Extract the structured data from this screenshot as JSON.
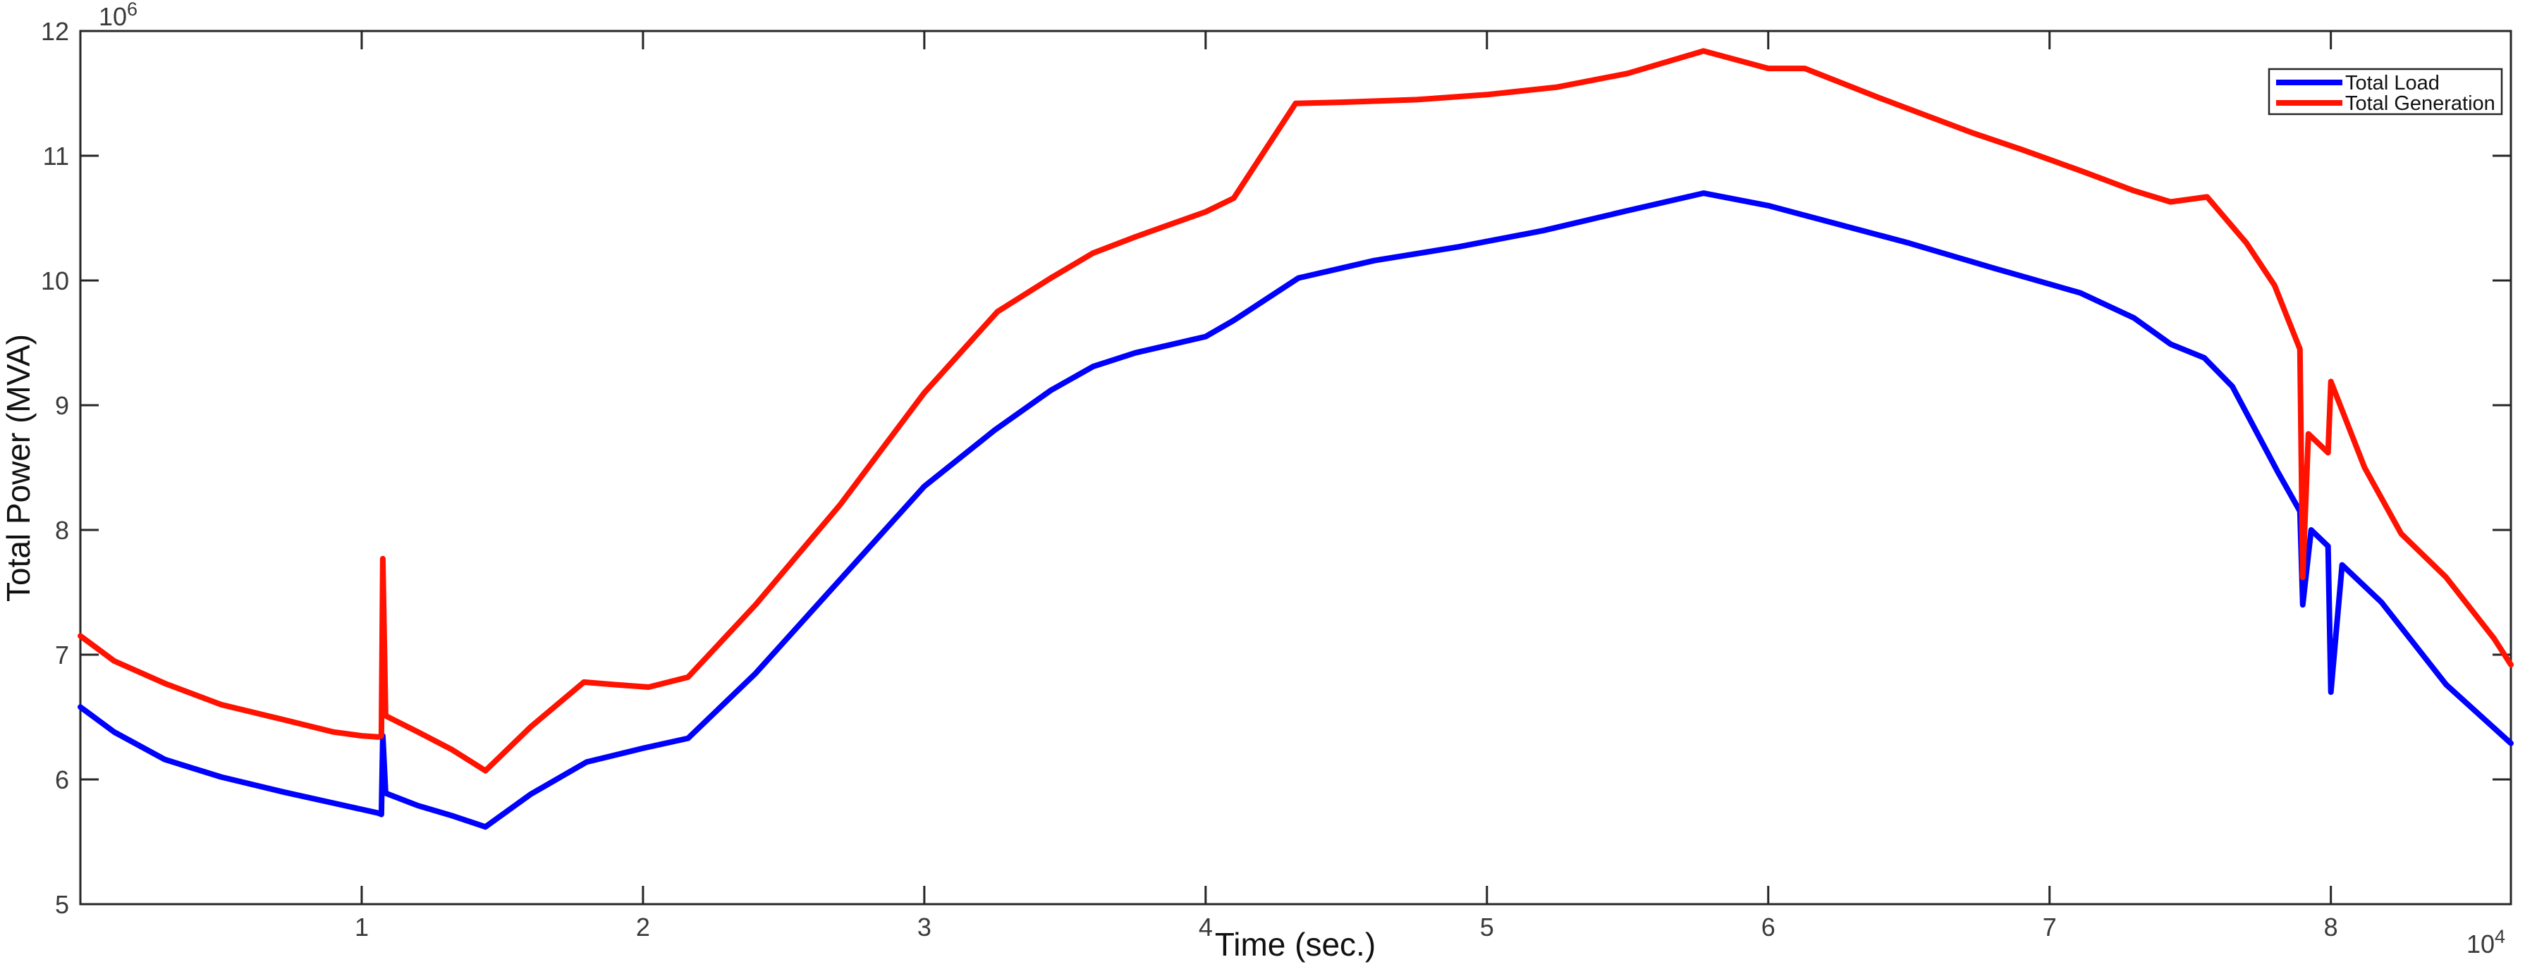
{
  "figure": {
    "background": "#ffffff",
    "axis_color": "#262626",
    "tick_color": "#3a3a3a"
  },
  "axes": {
    "x_label": "Time (sec.)",
    "y_label": "Total Power (MVA)",
    "x_exponent_base": "10",
    "x_exponent_power": "4",
    "y_exponent_base": "10",
    "y_exponent_power": "6"
  },
  "chart_data": {
    "type": "line",
    "title": "",
    "xlabel": "Time (sec.)",
    "ylabel": "Total Power (MVA)",
    "x_unit": "1e4 seconds",
    "y_unit": "1e6 MVA",
    "xlim": [
      0,
      8.64
    ],
    "ylim": [
      5,
      12
    ],
    "x_ticks": [
      1,
      2,
      3,
      4,
      5,
      6,
      7,
      8
    ],
    "y_ticks": [
      5,
      6,
      7,
      8,
      9,
      10,
      11,
      12
    ],
    "grid": false,
    "legend_position": "top-right",
    "series": [
      {
        "name": "Total Load",
        "color": "#0000ff",
        "points": [
          [
            0,
            6.58
          ],
          [
            0.12,
            6.38
          ],
          [
            0.3,
            6.16
          ],
          [
            0.5,
            6.02
          ],
          [
            0.72,
            5.9
          ],
          [
            0.9,
            5.81
          ],
          [
            1,
            5.76
          ],
          [
            1.06,
            5.73
          ],
          [
            1.07,
            5.72
          ],
          [
            1.075,
            6.35
          ],
          [
            1.085,
            5.89
          ],
          [
            1.2,
            5.79
          ],
          [
            1.32,
            5.71
          ],
          [
            1.44,
            5.62
          ],
          [
            1.6,
            5.88
          ],
          [
            1.8,
            6.14
          ],
          [
            2,
            6.25
          ],
          [
            2.16,
            6.33
          ],
          [
            2.4,
            6.85
          ],
          [
            2.7,
            7.6
          ],
          [
            3,
            8.35
          ],
          [
            3.25,
            8.8
          ],
          [
            3.45,
            9.12
          ],
          [
            3.6,
            9.31
          ],
          [
            3.75,
            9.42
          ],
          [
            4,
            9.55
          ],
          [
            4.1,
            9.68
          ],
          [
            4.33,
            10.02
          ],
          [
            4.6,
            10.16
          ],
          [
            4.9,
            10.27
          ],
          [
            5.2,
            10.4
          ],
          [
            5.5,
            10.56
          ],
          [
            5.77,
            10.7
          ],
          [
            6,
            10.6
          ],
          [
            6.2,
            10.48
          ],
          [
            6.5,
            10.3
          ],
          [
            6.8,
            10.1
          ],
          [
            7.11,
            9.9
          ],
          [
            7.3,
            9.7
          ],
          [
            7.43,
            9.49
          ],
          [
            7.55,
            9.38
          ],
          [
            7.65,
            9.15
          ],
          [
            7.81,
            8.47
          ],
          [
            7.89,
            8.15
          ],
          [
            7.9,
            7.4
          ],
          [
            7.93,
            8.0
          ],
          [
            7.99,
            7.87
          ],
          [
            8.0,
            6.7
          ],
          [
            8.04,
            7.72
          ],
          [
            8.18,
            7.42
          ],
          [
            8.41,
            6.76
          ],
          [
            8.64,
            6.29
          ]
        ]
      },
      {
        "name": "Total Generation",
        "color": "#ff1200",
        "points": [
          [
            0,
            7.15
          ],
          [
            0.12,
            6.95
          ],
          [
            0.3,
            6.77
          ],
          [
            0.5,
            6.6
          ],
          [
            0.72,
            6.48
          ],
          [
            0.9,
            6.38
          ],
          [
            1,
            6.35
          ],
          [
            1.06,
            6.34
          ],
          [
            1.07,
            6.35
          ],
          [
            1.075,
            7.77
          ],
          [
            1.085,
            6.51
          ],
          [
            1.2,
            6.38
          ],
          [
            1.32,
            6.24
          ],
          [
            1.44,
            6.07
          ],
          [
            1.6,
            6.42
          ],
          [
            1.79,
            6.78
          ],
          [
            1.9,
            6.76
          ],
          [
            2.02,
            6.74
          ],
          [
            2.16,
            6.82
          ],
          [
            2.4,
            7.4
          ],
          [
            2.7,
            8.2
          ],
          [
            3,
            9.1
          ],
          [
            3.26,
            9.75
          ],
          [
            3.45,
            10.02
          ],
          [
            3.6,
            10.22
          ],
          [
            3.75,
            10.35
          ],
          [
            4,
            10.55
          ],
          [
            4.1,
            10.66
          ],
          [
            4.32,
            11.42
          ],
          [
            4.5,
            11.43
          ],
          [
            4.75,
            11.45
          ],
          [
            5,
            11.49
          ],
          [
            5.25,
            11.55
          ],
          [
            5.5,
            11.66
          ],
          [
            5.77,
            11.84
          ],
          [
            6,
            11.7
          ],
          [
            6.13,
            11.7
          ],
          [
            6.4,
            11.46
          ],
          [
            6.73,
            11.18
          ],
          [
            6.9,
            11.05
          ],
          [
            7.11,
            10.88
          ],
          [
            7.3,
            10.72
          ],
          [
            7.43,
            10.63
          ],
          [
            7.56,
            10.67
          ],
          [
            7.7,
            10.3
          ],
          [
            7.8,
            9.96
          ],
          [
            7.89,
            9.45
          ],
          [
            7.9,
            7.62
          ],
          [
            7.92,
            8.77
          ],
          [
            7.99,
            8.62
          ],
          [
            8.0,
            9.19
          ],
          [
            8.12,
            8.5
          ],
          [
            8.25,
            7.97
          ],
          [
            8.41,
            7.62
          ],
          [
            8.58,
            7.13
          ],
          [
            8.64,
            6.92
          ]
        ]
      }
    ]
  },
  "legend": {
    "entries": [
      {
        "label": "Total Load",
        "color": "#0000ff"
      },
      {
        "label": "Total Generation",
        "color": "#ff1200"
      }
    ]
  }
}
